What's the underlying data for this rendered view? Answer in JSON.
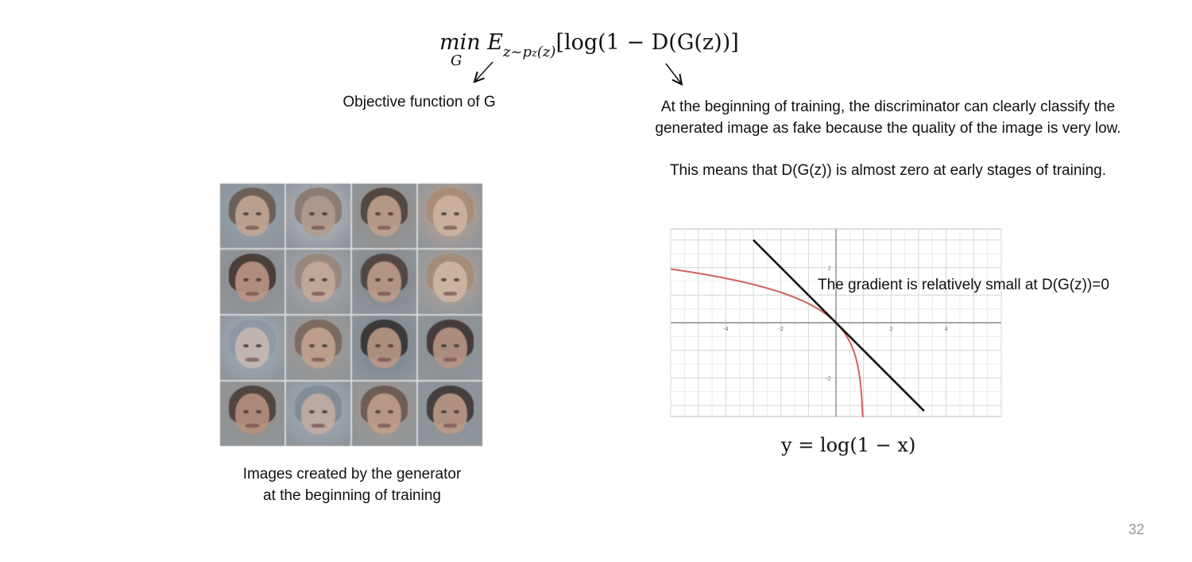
{
  "formula": {
    "op": "min",
    "op_sub": "G",
    "expect": "E",
    "expect_sub": "z~p",
    "expect_sub2": "z",
    "expect_sub3": "(z)",
    "body": "[log(1 − D(G(z))]"
  },
  "labels": {
    "objective": "Objective function of G",
    "beginning_line1": "At the beginning of training, the discriminator can clearly classify the",
    "beginning_line2": "generated image as fake because the quality of the image is very low.",
    "means": "This means that D(G(z)) is almost zero at early stages of training.",
    "gradient_note": "The gradient is relatively small at D(G(z))=0",
    "caption_line1": "Images created by the generator",
    "caption_line2": "at the beginning of training",
    "equation": "y  =  log(1 − x)",
    "page_number": "32"
  },
  "faces": [
    {
      "hair": "#6a5248",
      "skin": "#c9a58f",
      "bg": "#8fa3b5"
    },
    {
      "hair": "#8a7266",
      "skin": "#b59a8a",
      "bg": "#b8bfc6"
    },
    {
      "hair": "#4a3a32",
      "skin": "#c79f86",
      "bg": "#9a8c80"
    },
    {
      "hair": "#b08a6a",
      "skin": "#d3b29a",
      "bg": "#c7a48c"
    },
    {
      "hair": "#3f2f29",
      "skin": "#c29480",
      "bg": "#8a8a8e"
    },
    {
      "hair": "#9a8274",
      "skin": "#caa996",
      "bg": "#a9a9ad"
    },
    {
      "hair": "#4b3b33",
      "skin": "#c49a84",
      "bg": "#7d8288"
    },
    {
      "hair": "#a9896f",
      "skin": "#d5b59e",
      "bg": "#b9a592"
    },
    {
      "hair": "#8c96a2",
      "skin": "#c8b8b0",
      "bg": "#9fb2c4"
    },
    {
      "hair": "#7a6255",
      "skin": "#c9a28a",
      "bg": "#a59a90"
    },
    {
      "hair": "#2f2a2a",
      "skin": "#c0977f",
      "bg": "#6f7f90"
    },
    {
      "hair": "#3b2e2a",
      "skin": "#be9380",
      "bg": "#8a8e94"
    },
    {
      "hair": "#4a3630",
      "skin": "#bf8e78",
      "bg": "#9a8f88"
    },
    {
      "hair": "#7b8894",
      "skin": "#c4ac9e",
      "bg": "#9fb0c2"
    },
    {
      "hair": "#6b5244",
      "skin": "#c79c84",
      "bg": "#a89888"
    },
    {
      "hair": "#3a3030",
      "skin": "#c19883",
      "bg": "#8a949e"
    }
  ],
  "chart_data": {
    "type": "line",
    "title": "",
    "xlabel": "",
    "ylabel": "",
    "xlim": [
      -6,
      6
    ],
    "ylim": [
      -3.4,
      3.4
    ],
    "grid": true,
    "x_ticks": [
      -4,
      -2,
      2,
      4
    ],
    "y_ticks": [
      2,
      -2
    ],
    "series": [
      {
        "function": "log(1-x)",
        "color": "#d0605c",
        "x_range": [
          -6,
          0.999
        ]
      },
      {
        "function": "tangent y = -x at x = 0",
        "color": "#111111",
        "x": [
          -3,
          3.2
        ],
        "y": [
          3,
          -3.2
        ]
      }
    ]
  }
}
